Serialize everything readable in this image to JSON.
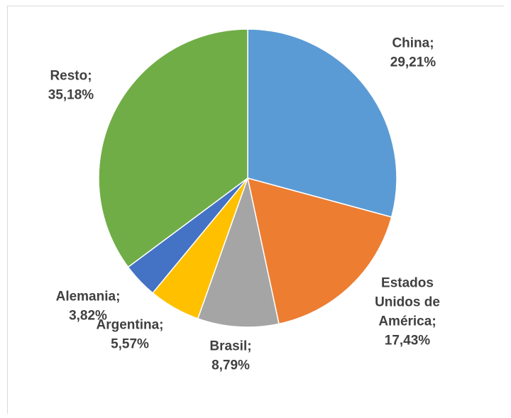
{
  "chart_data": {
    "type": "pie",
    "title": "",
    "categories": [
      "China",
      "Estados Unidos de América",
      "Brasil",
      "Argentina",
      "Alemania",
      "Resto"
    ],
    "values": [
      29.21,
      17.43,
      8.79,
      5.57,
      3.82,
      35.18
    ],
    "unit": "%",
    "labels": [
      {
        "lines": [
          "China;",
          "29,21%"
        ]
      },
      {
        "lines": [
          "Estados",
          "Unidos de",
          "América;",
          "17,43%"
        ]
      },
      {
        "lines": [
          "Brasil;",
          "8,79%"
        ]
      },
      {
        "lines": [
          "Argentina;",
          "5,57%"
        ]
      },
      {
        "lines": [
          "Alemania;",
          "3,82%"
        ]
      },
      {
        "lines": [
          "Resto;",
          "35,18%"
        ]
      }
    ],
    "colors": [
      "#5b9bd5",
      "#ed7d31",
      "#a5a5a5",
      "#ffc000",
      "#4472c4",
      "#70ad47"
    ],
    "start_angle": "12 o'clock",
    "direction": "clockwise",
    "legend": "none"
  }
}
